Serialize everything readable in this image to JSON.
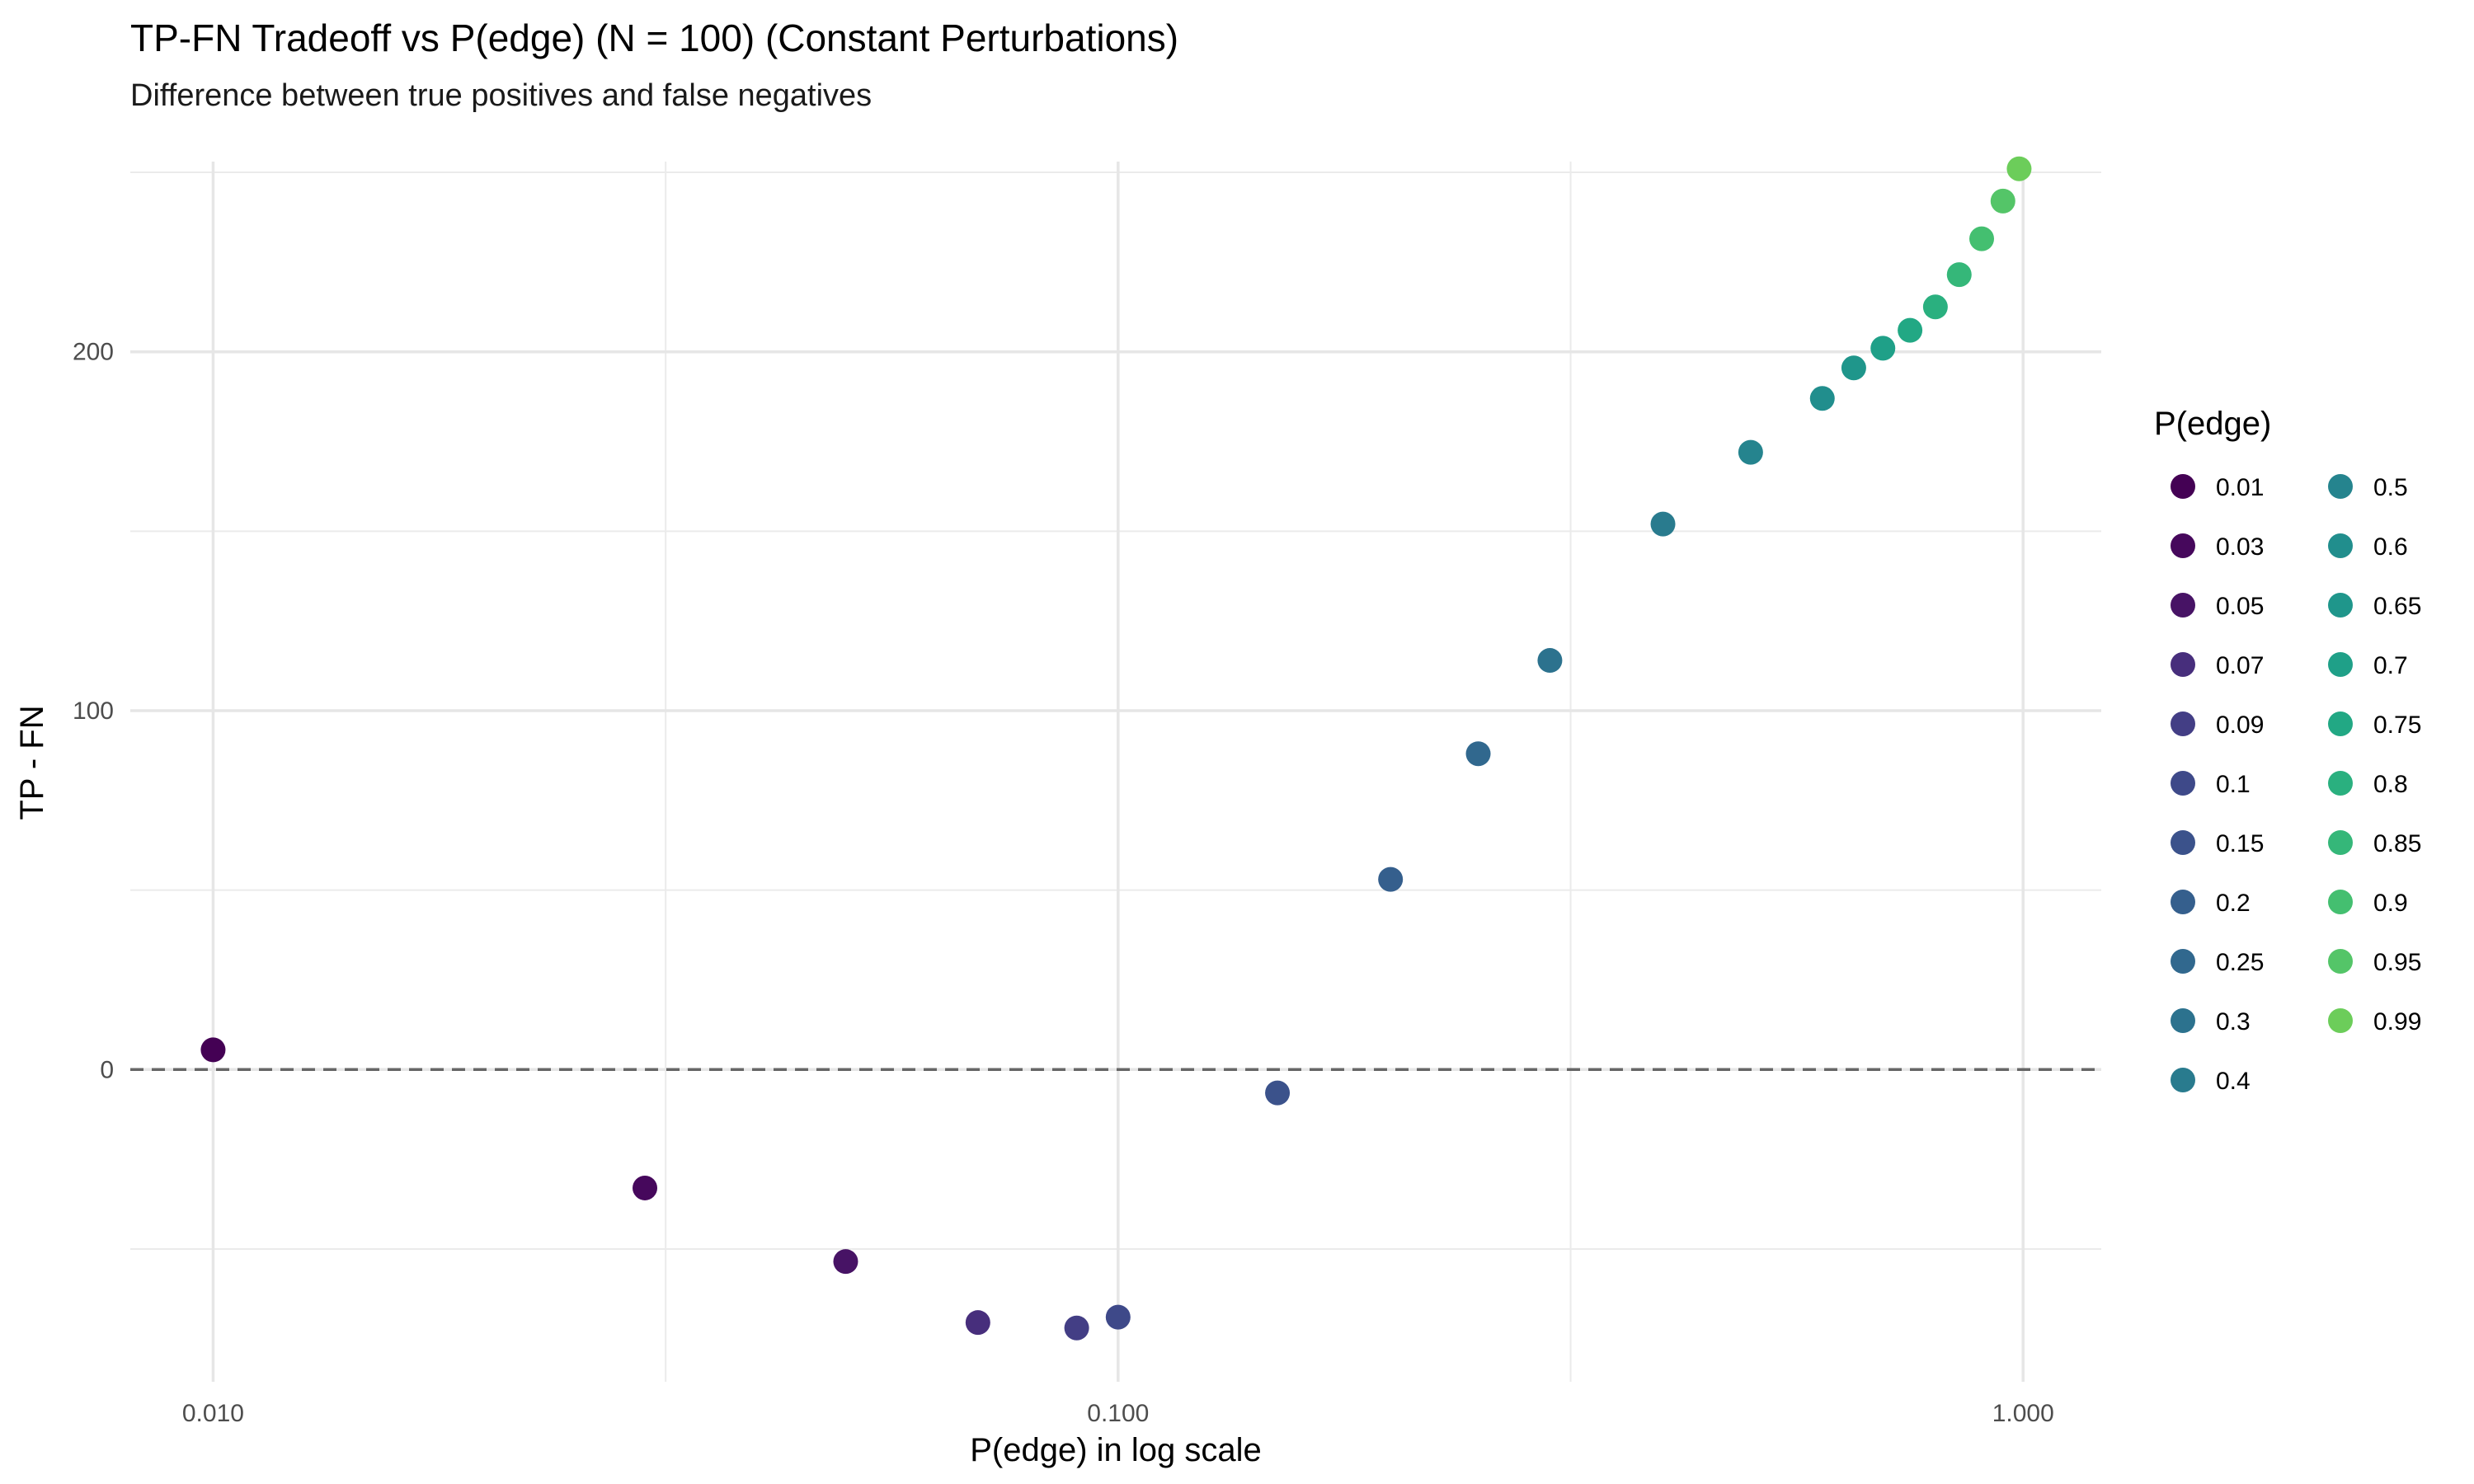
{
  "chart_data": {
    "type": "scatter",
    "title": "TP-FN Tradeoff vs P(edge) (N = 100) (Constant Perturbations)",
    "subtitle": "Difference between true positives and false negatives",
    "xlabel": "P(edge) in log scale",
    "ylabel": "TP - FN",
    "x_scale": "log10",
    "xlim": [
      0.0081,
      1.22
    ],
    "ylim": [
      -87,
      253
    ],
    "x_ticks": [
      0.01,
      0.1,
      1.0
    ],
    "x_tick_labels": [
      "0.010",
      "0.100",
      "1.000"
    ],
    "y_ticks": [
      0,
      100,
      200
    ],
    "y_tick_labels": [
      "0",
      "100",
      "200"
    ],
    "reference_line": {
      "y": 0,
      "style": "dashed"
    },
    "grid": true,
    "legend": {
      "title": "P(edge)",
      "placement": "right",
      "columns": 2
    },
    "points": [
      {
        "x": 0.01,
        "y": 5.5,
        "label": "0.01",
        "color": "#440154"
      },
      {
        "x": 0.03,
        "y": -33,
        "label": "0.03",
        "color": "#46085c"
      },
      {
        "x": 0.05,
        "y": -53.5,
        "label": "0.05",
        "color": "#471365"
      },
      {
        "x": 0.07,
        "y": -70.5,
        "label": "0.07",
        "color": "#472e7c"
      },
      {
        "x": 0.09,
        "y": -72,
        "label": "0.09",
        "color": "#433e85"
      },
      {
        "x": 0.1,
        "y": -69,
        "label": "0.1",
        "color": "#3e4989"
      },
      {
        "x": 0.15,
        "y": -6.5,
        "label": "0.15",
        "color": "#3b528b"
      },
      {
        "x": 0.2,
        "y": 53,
        "label": "0.2",
        "color": "#355f8d"
      },
      {
        "x": 0.25,
        "y": 88,
        "label": "0.25",
        "color": "#31688e"
      },
      {
        "x": 0.3,
        "y": 114,
        "label": "0.3",
        "color": "#2c728e"
      },
      {
        "x": 0.4,
        "y": 152,
        "label": "0.4",
        "color": "#297b8e"
      },
      {
        "x": 0.5,
        "y": 172,
        "label": "0.5",
        "color": "#25848e"
      },
      {
        "x": 0.6,
        "y": 187,
        "label": "0.6",
        "color": "#218e8d"
      },
      {
        "x": 0.65,
        "y": 195.5,
        "label": "0.65",
        "color": "#1f968b"
      },
      {
        "x": 0.7,
        "y": 201,
        "label": "0.7",
        "color": "#1fa088"
      },
      {
        "x": 0.75,
        "y": 206,
        "label": "0.75",
        "color": "#22a884"
      },
      {
        "x": 0.8,
        "y": 212.5,
        "label": "0.8",
        "color": "#2ab07f"
      },
      {
        "x": 0.85,
        "y": 221.5,
        "label": "0.85",
        "color": "#35b779"
      },
      {
        "x": 0.9,
        "y": 231.5,
        "label": "0.9",
        "color": "#44bf70"
      },
      {
        "x": 0.95,
        "y": 242,
        "label": "0.95",
        "color": "#54c568"
      },
      {
        "x": 0.99,
        "y": 251,
        "label": "0.99",
        "color": "#6ccd5a"
      }
    ]
  }
}
